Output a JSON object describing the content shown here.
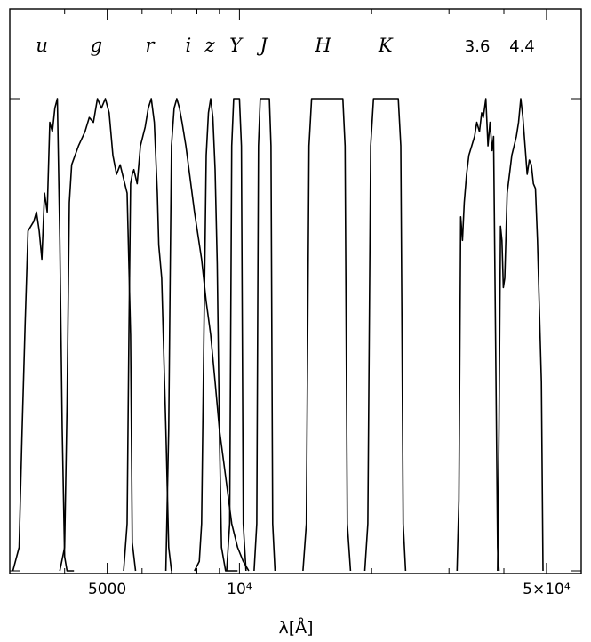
{
  "chart_data": {
    "type": "line",
    "xlabel": "λ[Å]",
    "xscale": "log",
    "xlim": [
      3000,
      60000
    ],
    "ylim": [
      0,
      1
    ],
    "x_tick_labels": [
      {
        "value": 5000,
        "label": "5000"
      },
      {
        "value": 10000,
        "label": "10⁴"
      },
      {
        "value": 50000,
        "label": "5×10⁴"
      }
    ],
    "band_labels": [
      {
        "label": "u",
        "x": 3550,
        "italic": true
      },
      {
        "label": "g",
        "x": 4720,
        "italic": true
      },
      {
        "label": "r",
        "x": 6250,
        "italic": true
      },
      {
        "label": "i",
        "x": 7650,
        "italic": true
      },
      {
        "label": "z",
        "x": 8560,
        "italic": true
      },
      {
        "label": "Y",
        "x": 9800,
        "italic": true
      },
      {
        "label": "J",
        "x": 11350,
        "italic": true
      },
      {
        "label": "H",
        "x": 15500,
        "italic": true
      },
      {
        "label": "K",
        "x": 21500,
        "italic": true
      },
      {
        "label": "3.6",
        "x": 34800,
        "italic": false
      },
      {
        "label": "4.4",
        "x": 44000,
        "italic": false
      }
    ],
    "series": [
      {
        "key": "u",
        "x": [
          3050,
          3150,
          3200,
          3250,
          3300,
          3400,
          3450,
          3500,
          3550,
          3600,
          3650,
          3700,
          3750,
          3800,
          3850,
          3900,
          3950,
          4000,
          4050,
          4100,
          4200
        ],
        "y": [
          0,
          0.05,
          0.3,
          0.52,
          0.72,
          0.74,
          0.76,
          0.72,
          0.66,
          0.8,
          0.76,
          0.95,
          0.93,
          0.98,
          1.0,
          0.7,
          0.3,
          0.03,
          0,
          0,
          0
        ]
      },
      {
        "key": "g",
        "x": [
          3900,
          4000,
          4050,
          4100,
          4150,
          4300,
          4450,
          4550,
          4650,
          4750,
          4850,
          4950,
          5050,
          5150,
          5250,
          5350,
          5450,
          5550,
          5650,
          5700,
          5800
        ],
        "y": [
          0,
          0.05,
          0.35,
          0.78,
          0.86,
          0.9,
          0.93,
          0.96,
          0.95,
          1.0,
          0.98,
          1.0,
          0.97,
          0.88,
          0.84,
          0.86,
          0.83,
          0.8,
          0.5,
          0.06,
          0
        ]
      },
      {
        "key": "r",
        "x": [
          5450,
          5550,
          5600,
          5650,
          5700,
          5750,
          5850,
          5950,
          6100,
          6200,
          6300,
          6400,
          6500,
          6550,
          6650,
          6800,
          6900,
          7000
        ],
        "y": [
          0,
          0.1,
          0.5,
          0.82,
          0.84,
          0.85,
          0.82,
          0.9,
          0.94,
          0.98,
          1.0,
          0.95,
          0.8,
          0.69,
          0.62,
          0.3,
          0.05,
          0
        ]
      },
      {
        "key": "i",
        "x": [
          6800,
          6900,
          6950,
          7000,
          7100,
          7200,
          7300,
          7400,
          7550,
          7700,
          7900,
          8200,
          8400,
          8600,
          8800,
          9000,
          9300,
          9600,
          9900,
          10200,
          10500
        ],
        "y": [
          0,
          0.3,
          0.6,
          0.9,
          0.98,
          1.0,
          0.98,
          0.95,
          0.9,
          0.84,
          0.76,
          0.66,
          0.57,
          0.5,
          0.4,
          0.3,
          0.2,
          0.1,
          0.05,
          0.02,
          0
        ]
      },
      {
        "key": "z",
        "x": [
          7900,
          8100,
          8200,
          8300,
          8400,
          8500,
          8600,
          8700,
          8800,
          8900,
          9000,
          9100,
          9300,
          9600,
          9900
        ],
        "y": [
          0,
          0.02,
          0.1,
          0.5,
          0.88,
          0.97,
          1.0,
          0.96,
          0.85,
          0.65,
          0.3,
          0.05,
          0,
          0,
          0
        ]
      },
      {
        "key": "Y",
        "x": [
          9350,
          9500,
          9600,
          9700,
          9800,
          9900,
          10000,
          10100,
          10200,
          10350
        ],
        "y": [
          0,
          0.1,
          0.9,
          1.0,
          1.0,
          1.0,
          1.0,
          0.9,
          0.1,
          0
        ]
      },
      {
        "key": "J",
        "x": [
          10800,
          10950,
          11050,
          11150,
          11300,
          11500,
          11700,
          11800,
          11900,
          12050
        ],
        "y": [
          0,
          0.1,
          0.9,
          1.0,
          1.0,
          1.0,
          1.0,
          0.9,
          0.1,
          0
        ]
      },
      {
        "key": "H",
        "x": [
          13950,
          14200,
          14400,
          14600,
          15500,
          16500,
          17200,
          17400,
          17600,
          17900
        ],
        "y": [
          0,
          0.1,
          0.9,
          1.0,
          1.0,
          1.0,
          1.0,
          0.9,
          0.1,
          0
        ]
      },
      {
        "key": "K",
        "x": [
          19300,
          19600,
          19900,
          20200,
          21500,
          22700,
          23000,
          23300,
          23600,
          23900
        ],
        "y": [
          0,
          0.1,
          0.9,
          1.0,
          1.0,
          1.0,
          1.0,
          0.9,
          0.1,
          0
        ]
      },
      {
        "key": "3.6",
        "x": [
          31300,
          31600,
          31900,
          32200,
          32500,
          32900,
          33300,
          33800,
          34300,
          34700,
          35200,
          35600,
          35900,
          36400,
          36800,
          37200,
          37600,
          37900,
          38300,
          38700,
          39000
        ],
        "y": [
          0,
          0.15,
          0.75,
          0.7,
          0.78,
          0.84,
          0.88,
          0.9,
          0.92,
          0.95,
          0.93,
          0.97,
          0.96,
          1.0,
          0.9,
          0.95,
          0.89,
          0.92,
          0.5,
          0.05,
          0
        ]
      },
      {
        "key": "4.4",
        "x": [
          38700,
          39000,
          39300,
          39600,
          39900,
          40200,
          40700,
          41200,
          41700,
          42200,
          42700,
          43200,
          43700,
          44200,
          44700,
          45200,
          45700,
          46200,
          46700,
          47200,
          47700,
          48200,
          48700,
          49100
        ],
        "y": [
          0,
          0.3,
          0.73,
          0.7,
          0.6,
          0.62,
          0.8,
          0.84,
          0.88,
          0.9,
          0.92,
          0.95,
          1.0,
          0.96,
          0.9,
          0.84,
          0.87,
          0.86,
          0.82,
          0.81,
          0.7,
          0.55,
          0.4,
          0
        ]
      }
    ]
  }
}
